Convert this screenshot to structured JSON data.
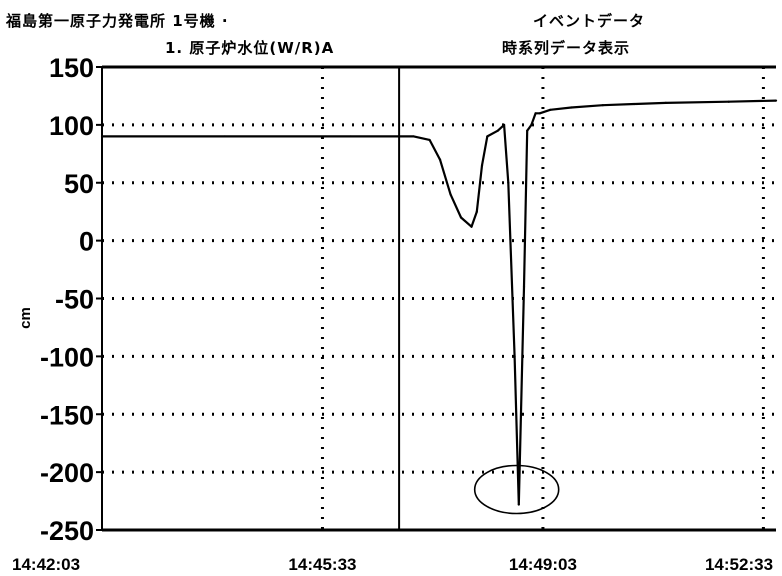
{
  "header": {
    "plant": "福島第一原子力発電所 1号機 ·",
    "event": "イベントデータ",
    "parameter": "1. 原子炉水位(W/R)A",
    "display": "時系列データ表示"
  },
  "chart_data": {
    "type": "line",
    "title": "",
    "xlabel": "",
    "ylabel": "cm",
    "ylim": [
      -250,
      150
    ],
    "yticks": [
      "150",
      "100",
      "50",
      "0",
      "-50",
      "-100",
      "-150",
      "-200",
      "-250"
    ],
    "xticks": [
      "14:42:03",
      "14:45:33",
      "14:49:03",
      "14:52:33"
    ],
    "xlim": [
      "14:42:03",
      "14:52:45"
    ],
    "grid": "dotted",
    "series": [
      {
        "name": "",
        "color": "#000000",
        "x": [
          "14:42:03",
          "14:44:00",
          "14:46:00",
          "14:47:00",
          "14:47:15",
          "14:47:25",
          "14:47:35",
          "14:47:45",
          "14:47:55",
          "14:48:00",
          "14:48:05",
          "14:48:10",
          "14:48:20",
          "14:48:26",
          "14:48:30",
          "14:48:36",
          "14:48:40",
          "14:48:45",
          "14:48:48",
          "14:48:52",
          "14:48:56",
          "14:49:00",
          "14:49:10",
          "14:49:30",
          "14:50:00",
          "14:50:30",
          "14:51:00",
          "14:52:00",
          "14:52:45"
        ],
        "values": [
          90,
          90,
          90,
          90,
          87,
          70,
          40,
          20,
          12,
          25,
          65,
          90,
          95,
          100,
          50,
          -100,
          -228,
          -40,
          95,
          100,
          110,
          110,
          113,
          115,
          117,
          118,
          119,
          120,
          121
        ]
      }
    ],
    "annotations": [
      {
        "type": "ellipse",
        "x": "14:48:38",
        "y": -215
      },
      {
        "type": "vertical-line",
        "x": "14:46:46"
      }
    ]
  }
}
